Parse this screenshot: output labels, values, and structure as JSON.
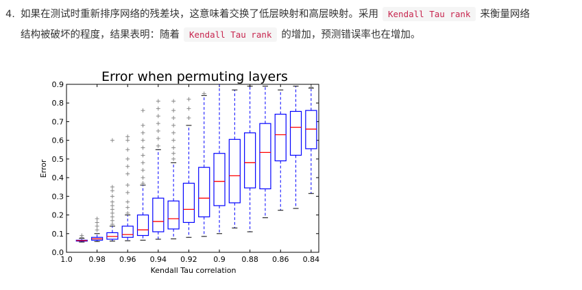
{
  "paragraph": {
    "number": "4.",
    "line1_a": "如果在测试时重新排序网络的残差块，这意味着交换了低层映射和高层映射。采用",
    "code1": "Kendall Tau rank",
    "line1_b": "来衡量网络",
    "line2_a": "结构被破坏的程度，结果表明：随着",
    "code2": "Kendall Tau rank",
    "line2_b": "的增加，预测错误率也在增加。"
  },
  "chart_data": {
    "type": "box",
    "title": "Error when permuting layers",
    "xlabel": "Kendall Tau correlation",
    "ylabel": "Error",
    "xlim": [
      1.0,
      0.835
    ],
    "ylim": [
      0.0,
      0.9
    ],
    "xticks": [
      "1.0",
      "0.98",
      "0.96",
      "0.94",
      "0.92",
      "0.9",
      "0.88",
      "0.86",
      "0.84"
    ],
    "yticks": [
      "0.0",
      "0.1",
      "0.2",
      "0.3",
      "0.4",
      "0.5",
      "0.6",
      "0.7",
      "0.8",
      "0.9"
    ],
    "boxes": [
      {
        "x": 0.99,
        "whisker_low": 0.055,
        "q1": 0.06,
        "median": 0.063,
        "q3": 0.065,
        "whisker_high": 0.075,
        "outliers": [
          0.08,
          0.09
        ]
      },
      {
        "x": 0.98,
        "whisker_low": 0.058,
        "q1": 0.065,
        "median": 0.072,
        "q3": 0.08,
        "whisker_high": 0.1,
        "outliers": [
          0.12,
          0.14,
          0.16,
          0.18
        ]
      },
      {
        "x": 0.97,
        "whisker_low": 0.06,
        "q1": 0.07,
        "median": 0.085,
        "q3": 0.105,
        "whisker_high": 0.14,
        "outliers": [
          0.15,
          0.17,
          0.19,
          0.21,
          0.23,
          0.25,
          0.27,
          0.3,
          0.33,
          0.35,
          0.6
        ]
      },
      {
        "x": 0.96,
        "whisker_low": 0.062,
        "q1": 0.08,
        "median": 0.095,
        "q3": 0.14,
        "whisker_high": 0.2,
        "outliers": [
          0.21,
          0.24,
          0.27,
          0.32,
          0.36,
          0.42,
          0.46,
          0.5,
          0.55,
          0.6,
          0.62
        ]
      },
      {
        "x": 0.95,
        "whisker_low": 0.065,
        "q1": 0.09,
        "median": 0.12,
        "q3": 0.2,
        "whisker_high": 0.36,
        "outliers": [
          0.37,
          0.4,
          0.44,
          0.48,
          0.52,
          0.56,
          0.6,
          0.64,
          0.68,
          0.76
        ]
      },
      {
        "x": 0.94,
        "whisker_low": 0.07,
        "q1": 0.11,
        "median": 0.165,
        "q3": 0.29,
        "whisker_high": 0.55,
        "outliers": [
          0.57,
          0.61,
          0.65,
          0.69,
          0.73,
          0.77,
          0.81
        ]
      },
      {
        "x": 0.93,
        "whisker_low": 0.072,
        "q1": 0.125,
        "median": 0.18,
        "q3": 0.275,
        "whisker_high": 0.48,
        "outliers": [
          0.5,
          0.53,
          0.56,
          0.6,
          0.64,
          0.68,
          0.72,
          0.76,
          0.81
        ]
      },
      {
        "x": 0.92,
        "whisker_low": 0.08,
        "q1": 0.16,
        "median": 0.23,
        "q3": 0.37,
        "whisker_high": 0.68,
        "outliers": [
          0.72,
          0.77,
          0.82
        ]
      },
      {
        "x": 0.91,
        "whisker_low": 0.085,
        "q1": 0.19,
        "median": 0.29,
        "q3": 0.455,
        "whisker_high": 0.84,
        "outliers": [
          0.85
        ]
      },
      {
        "x": 0.9,
        "whisker_low": 0.1,
        "q1": 0.25,
        "median": 0.38,
        "q3": 0.53,
        "whisker_high": 0.9,
        "outliers": []
      },
      {
        "x": 0.89,
        "whisker_low": 0.13,
        "q1": 0.265,
        "median": 0.41,
        "q3": 0.605,
        "whisker_high": 0.87,
        "outliers": []
      },
      {
        "x": 0.88,
        "whisker_low": 0.11,
        "q1": 0.345,
        "median": 0.48,
        "q3": 0.64,
        "whisker_high": 0.89,
        "outliers": []
      },
      {
        "x": 0.87,
        "whisker_low": 0.185,
        "q1": 0.34,
        "median": 0.535,
        "q3": 0.69,
        "whisker_high": 0.89,
        "outliers": []
      },
      {
        "x": 0.86,
        "whisker_low": 0.225,
        "q1": 0.49,
        "median": 0.63,
        "q3": 0.74,
        "whisker_high": 0.87,
        "outliers": []
      },
      {
        "x": 0.85,
        "whisker_low": 0.235,
        "q1": 0.52,
        "median": 0.67,
        "q3": 0.755,
        "whisker_high": 0.89,
        "outliers": []
      },
      {
        "x": 0.84,
        "whisker_low": 0.315,
        "q1": 0.555,
        "median": 0.66,
        "q3": 0.76,
        "whisker_high": 0.88,
        "outliers": [
          0.885
        ]
      }
    ],
    "colors": {
      "box": "#0000ff",
      "median": "#ff0000",
      "outlier": "#888888"
    }
  }
}
